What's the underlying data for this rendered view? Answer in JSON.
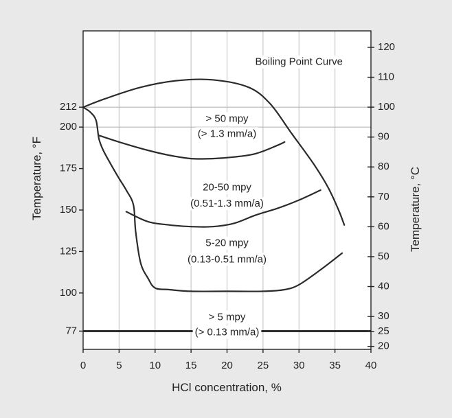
{
  "chart_data": {
    "type": "line",
    "x_axis": {
      "label": "HCl concentration, %",
      "range": [
        0,
        40
      ],
      "ticks": [
        "0",
        "5",
        "10",
        "15",
        "20",
        "25",
        "30",
        "35",
        "40"
      ]
    },
    "y_axis_left": {
      "label": "Temperature, °F",
      "unit": "°F",
      "range": [
        66,
        258
      ],
      "ticks": [
        "77",
        "100",
        "125",
        "150",
        "175",
        "200",
        "212"
      ]
    },
    "y_axis_right": {
      "label": "Temperature, °C",
      "unit": "°C",
      "range": [
        19,
        125.5
      ],
      "ticks": [
        "20",
        "25",
        "30",
        "40",
        "50",
        "60",
        "70",
        "80",
        "90",
        "100",
        "110",
        "120"
      ]
    },
    "grid": {
      "vertical": true,
      "horizontal_at_f": [
        200,
        212
      ]
    },
    "series": [
      {
        "name": "Boiling Point Curve",
        "y_unit": "°F",
        "points": [
          [
            0,
            212
          ],
          [
            3,
            217
          ],
          [
            8,
            224
          ],
          [
            13,
            228
          ],
          [
            18,
            228.5
          ],
          [
            23,
            224
          ],
          [
            26,
            214
          ],
          [
            29,
            196
          ],
          [
            32,
            178
          ],
          [
            34,
            164
          ],
          [
            35.5,
            150
          ],
          [
            36.3,
            141
          ]
        ]
      },
      {
        "y_unit": "°F",
        "points": [
          [
            0,
            212
          ],
          [
            1,
            209
          ],
          [
            1.8,
            204
          ],
          [
            2.2,
            193
          ],
          [
            2.8,
            186
          ],
          [
            3.8,
            178
          ],
          [
            5,
            169
          ],
          [
            6,
            162
          ],
          [
            7,
            153
          ],
          [
            7.3,
            137
          ],
          [
            8,
            118
          ],
          [
            9,
            109
          ],
          [
            10,
            103
          ],
          [
            12,
            102
          ],
          [
            15,
            101
          ],
          [
            20,
            101
          ],
          [
            25,
            101
          ],
          [
            28,
            102
          ],
          [
            30,
            105
          ],
          [
            33,
            114
          ],
          [
            36,
            124
          ]
        ]
      },
      {
        "y_unit": "°F",
        "points": [
          [
            2.2,
            195
          ],
          [
            5,
            191
          ],
          [
            9,
            186
          ],
          [
            12,
            183
          ],
          [
            15,
            181
          ],
          [
            18,
            181
          ],
          [
            21,
            182
          ],
          [
            24,
            184
          ],
          [
            27,
            189
          ],
          [
            28,
            191
          ]
        ]
      },
      {
        "y_unit": "°F",
        "points": [
          [
            6,
            149
          ],
          [
            9,
            143
          ],
          [
            12,
            141
          ],
          [
            15,
            140
          ],
          [
            18,
            140
          ],
          [
            21,
            142
          ],
          [
            24,
            147
          ],
          [
            27,
            151
          ],
          [
            30,
            156
          ],
          [
            33,
            162
          ]
        ]
      }
    ],
    "annotations": [
      {
        "text": "Boiling Point Curve",
        "x": 30,
        "y_c": 115
      },
      {
        "text": "> 50 mpy",
        "x": 20,
        "y_c": 96
      },
      {
        "text": "(> 1.3 mm/a)",
        "x": 20,
        "y_c": 91
      },
      {
        "text": "20-50 mpy",
        "x": 20,
        "y_c": 73
      },
      {
        "text": "(0.51-1.3 mm/a)",
        "x": 20,
        "y_c": 67.6
      },
      {
        "text": "5-20 mpy",
        "x": 20,
        "y_c": 54.4
      },
      {
        "text": "(0.13-0.51 mm/a)",
        "x": 20,
        "y_c": 49
      },
      {
        "text": "> 5 mpy",
        "x": 20,
        "y_c": 29.7
      },
      {
        "text": "(> 0.13 mm/a)",
        "x": 20,
        "y_c": 24.6
      }
    ],
    "reference_line": {
      "y_f": 77,
      "y_c": 25
    }
  }
}
